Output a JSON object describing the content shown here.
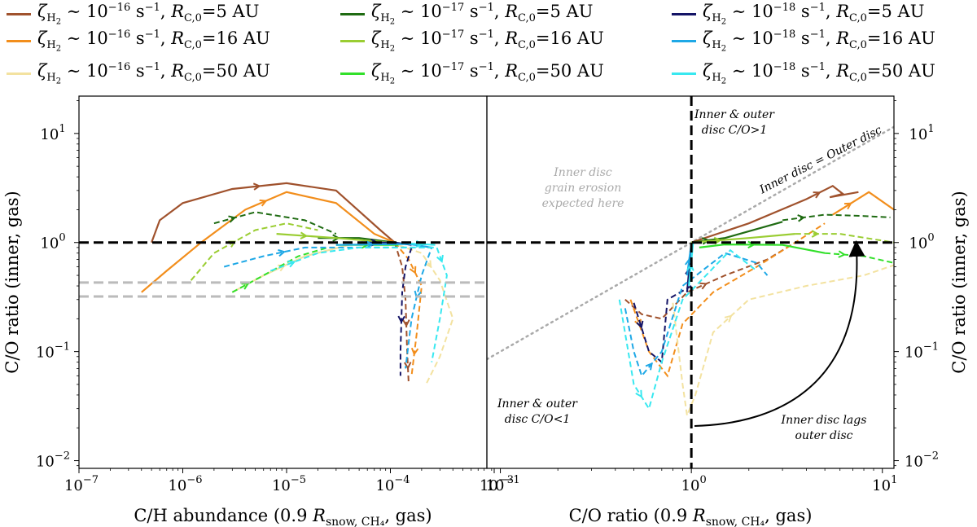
{
  "legend": [
    {
      "zeta": "10",
      "zeta_exp": "−16",
      "r_label": "=5 AU",
      "color": "#a0522d"
    },
    {
      "zeta": "10",
      "zeta_exp": "−16",
      "r_label": "=16 AU",
      "color": "#f28e1c"
    },
    {
      "zeta": "10",
      "zeta_exp": "−16",
      "r_label": "=50 AU",
      "color": "#f3e2a0"
    },
    {
      "zeta": "10",
      "zeta_exp": "−17",
      "r_label": "=5 AU",
      "color": "#1f6b12"
    },
    {
      "zeta": "10",
      "zeta_exp": "−17",
      "r_label": "=16 AU",
      "color": "#9acd32"
    },
    {
      "zeta": "10",
      "zeta_exp": "−17",
      "r_label": "=50 AU",
      "color": "#32e02a"
    },
    {
      "zeta": "10",
      "zeta_exp": "−18",
      "r_label": "=5 AU",
      "color": "#141466"
    },
    {
      "zeta": "10",
      "zeta_exp": "−18",
      "r_label": "=16 AU",
      "color": "#1ea8e6"
    },
    {
      "zeta": "10",
      "zeta_exp": "−18",
      "r_label": "=50 AU",
      "color": "#38e8f0"
    }
  ],
  "chart_data": [
    {
      "type": "line",
      "panel": "left",
      "xlabel": "C/H abundance (0.9 R_snow,CH4, gas)",
      "ylabel": "C/O ratio (inner, gas)",
      "xscale": "log",
      "yscale": "log",
      "xlim": [
        1e-07,
        0.00085
      ],
      "ylim": [
        0.0085,
        22
      ],
      "xticks": [
        {
          "base": "10",
          "exp": "−7",
          "v": 1e-07
        },
        {
          "base": "10",
          "exp": "−6",
          "v": 1e-06
        },
        {
          "base": "10",
          "exp": "−5",
          "v": 1e-05
        },
        {
          "base": "10",
          "exp": "−4",
          "v": 0.0001
        },
        {
          "base": "10",
          "exp": "−3",
          "v": 0.001
        }
      ],
      "yticks": [
        {
          "label": "10",
          "exp": "−2",
          "v": 0.01
        },
        {
          "label": "10",
          "exp": "−1",
          "v": 0.1
        },
        {
          "label": "10",
          "exp": "0",
          "v": 1
        },
        {
          "label": "10",
          "exp": "1",
          "v": 10
        }
      ],
      "hlines": [
        {
          "y": 1.0,
          "style": "black-dashed"
        },
        {
          "y": 0.43,
          "style": "grey-dashed"
        },
        {
          "y": 0.32,
          "style": "grey-dashed"
        }
      ],
      "series": [
        {
          "name": "ζ~1e-16, R=5 AU",
          "color": "#a0522d",
          "solid": [
            [
              5e-07,
              1.0
            ],
            [
              6e-07,
              1.6
            ],
            [
              1e-06,
              2.3
            ],
            [
              3e-06,
              3.1
            ],
            [
              1e-05,
              3.5
            ],
            [
              3e-05,
              3.0
            ],
            [
              8e-05,
              1.3
            ],
            [
              0.00011,
              1.0
            ]
          ],
          "dashed": [
            [
              0.00011,
              1.0
            ],
            [
              0.00013,
              0.6
            ],
            [
              0.00014,
              0.3
            ],
            [
              0.000145,
              0.1
            ],
            [
              0.00015,
              0.05
            ]
          ],
          "arrows": [
            3,
            5
          ]
        },
        {
          "name": "ζ~1e-16, R=16 AU",
          "color": "#f28e1c",
          "solid": [
            [
              4e-07,
              0.35
            ],
            [
              7e-07,
              0.55
            ],
            [
              1.5e-06,
              1.0
            ],
            [
              4e-06,
              2.0
            ],
            [
              1e-05,
              2.9
            ],
            [
              3e-05,
              2.3
            ],
            [
              7e-05,
              1.2
            ],
            [
              0.00011,
              1.0
            ]
          ],
          "dashed": [
            [
              0.00011,
              1.0
            ],
            [
              0.00015,
              0.7
            ],
            [
              0.0002,
              0.4
            ],
            [
              0.00018,
              0.15
            ],
            [
              0.00016,
              0.06
            ]
          ],
          "arrows": [
            2,
            4
          ]
        },
        {
          "name": "ζ~1e-16, R=50 AU",
          "color": "#f3e2a0",
          "solid": [
            [
              3e-06,
              0.35
            ],
            [
              6e-06,
              0.5
            ],
            [
              1.5e-05,
              0.75
            ],
            [
              4e-05,
              0.95
            ],
            [
              0.0001,
              1.0
            ]
          ],
          "dashed": [
            [
              0.0001,
              1.0
            ],
            [
              0.0002,
              0.8
            ],
            [
              0.0003,
              0.45
            ],
            [
              0.0004,
              0.2
            ],
            [
              0.0003,
              0.09
            ],
            [
              0.00022,
              0.05
            ]
          ],
          "arrows": [
            2
          ]
        },
        {
          "name": "ζ~1e-17, R=5 AU",
          "color": "#1f6b12",
          "solid": [
            [
              2e-05,
              1.1
            ],
            [
              5e-05,
              1.1
            ],
            [
              0.00011,
              1.0
            ]
          ],
          "dashed": [
            [
              2e-06,
              1.5
            ],
            [
              5e-06,
              1.9
            ],
            [
              1.5e-05,
              1.6
            ],
            [
              3e-05,
              1.2
            ]
          ],
          "arrows": [
            1
          ]
        },
        {
          "name": "ζ~1e-17, R=16 AU",
          "color": "#9acd32",
          "solid": [
            [
              8e-06,
              1.2
            ],
            [
              3e-05,
              1.1
            ],
            [
              0.0001,
              1.0
            ]
          ],
          "dashed": [
            [
              1.2e-06,
              0.45
            ],
            [
              2e-06,
              0.8
            ],
            [
              5e-06,
              1.3
            ],
            [
              1e-05,
              1.5
            ],
            [
              2e-05,
              1.3
            ]
          ],
          "arrows": [
            2
          ]
        },
        {
          "name": "ζ~1e-17, R=50 AU",
          "color": "#32e02a",
          "solid": [
            [
              3e-05,
              0.95
            ],
            [
              0.00012,
              0.95
            ]
          ],
          "dashed": [
            [
              3e-06,
              0.35
            ],
            [
              6e-06,
              0.5
            ],
            [
              1.3e-05,
              0.75
            ],
            [
              2.5e-05,
              0.9
            ]
          ],
          "arrows": [
            1
          ]
        },
        {
          "name": "ζ~1e-18, R=5 AU",
          "color": "#141466",
          "solid": [
            [
              5e-05,
              1.0
            ],
            [
              0.00011,
              1.0
            ],
            [
              0.00016,
              0.95
            ]
          ],
          "dashed": [
            [
              0.00016,
              0.9
            ],
            [
              0.00014,
              0.6
            ],
            [
              0.00013,
              0.35
            ],
            [
              0.000125,
              0.1
            ],
            [
              0.000125,
              0.06
            ]
          ],
          "arrows": [
            3
          ]
        },
        {
          "name": "ζ~1e-18, R=16 AU",
          "color": "#1ea8e6",
          "solid": [
            [
              3e-05,
              0.95
            ],
            [
              0.00015,
              0.97
            ],
            [
              0.00025,
              0.9
            ]
          ],
          "dashed": [
            [
              2.5e-06,
              0.6
            ],
            [
              6e-06,
              0.75
            ],
            [
              1.5e-05,
              0.9
            ],
            [
              0.00025,
              0.9
            ],
            [
              0.0002,
              0.5
            ],
            [
              0.00016,
              0.2
            ],
            [
              0.00014,
              0.07
            ]
          ],
          "arrows": [
            2,
            5
          ]
        },
        {
          "name": "ζ~1e-18, R=50 AU",
          "color": "#38e8f0",
          "solid": [
            [
              0.00015,
              0.98
            ],
            [
              0.00027,
              0.95
            ]
          ],
          "dashed": [
            [
              7e-06,
              0.55
            ],
            [
              2e-05,
              0.8
            ],
            [
              5e-05,
              0.9
            ],
            [
              0.00028,
              0.9
            ],
            [
              0.00035,
              0.5
            ],
            [
              0.0003,
              0.2
            ],
            [
              0.00025,
              0.08
            ]
          ],
          "arrows": [
            1,
            4
          ]
        }
      ]
    },
    {
      "type": "line",
      "panel": "right",
      "xlabel": "C/O ratio (0.9 R_snow,CH4, gas)",
      "ylabel": "C/O ratio (inner, gas)",
      "xscale": "log",
      "yscale": "log",
      "xlim": [
        0.085,
        11.5
      ],
      "ylim": [
        0.0085,
        22
      ],
      "xticks": [
        {
          "base": "10",
          "exp": "−1",
          "v": 0.1
        },
        {
          "base": "10",
          "exp": "0",
          "v": 1
        },
        {
          "base": "10",
          "exp": "1",
          "v": 10
        }
      ],
      "yticks": [
        {
          "label": "10",
          "exp": "−2",
          "v": 0.01
        },
        {
          "label": "10",
          "exp": "−1",
          "v": 0.1
        },
        {
          "label": "10",
          "exp": "0",
          "v": 1
        },
        {
          "label": "10",
          "exp": "1",
          "v": 10
        }
      ],
      "hlines": [
        {
          "y": 1.0,
          "style": "black-dashed"
        }
      ],
      "vlines": [
        {
          "x": 1.0,
          "style": "black-dashed"
        }
      ],
      "diagonal": {
        "label": "Inner disc = Outer disc"
      },
      "annotations": [
        {
          "id": "top",
          "lines": [
            "Inner & outer",
            "disc C/O>1"
          ]
        },
        {
          "id": "erosion",
          "lines": [
            "Inner disc",
            "grain erosion",
            "expected here"
          ]
        },
        {
          "id": "bottom",
          "lines": [
            "Inner & outer",
            "disc C/O<1"
          ]
        },
        {
          "id": "lag",
          "lines": [
            "Inner disc lags",
            "outer disc"
          ]
        }
      ],
      "series": [
        {
          "name": "ζ~1e-16, R=5 AU",
          "color": "#a0522d",
          "solid": [
            [
              1.0,
              1.0
            ],
            [
              2.0,
              1.5
            ],
            [
              4.0,
              2.5
            ],
            [
              5.5,
              3.3
            ],
            [
              6.2,
              2.8
            ],
            [
              5.3,
              2.6
            ],
            [
              7.5,
              2.9
            ]
          ],
          "dashed": [
            [
              0.45,
              0.3
            ],
            [
              0.55,
              0.22
            ],
            [
              0.7,
              0.2
            ],
            [
              0.95,
              0.35
            ],
            [
              1.5,
              0.5
            ],
            [
              2.5,
              0.7
            ],
            [
              3.5,
              1.0
            ]
          ],
          "arrows": [
            4
          ]
        },
        {
          "name": "ζ~1e-16, R=16 AU",
          "color": "#f28e1c",
          "solid": [
            [
              5.5,
              1.8
            ],
            [
              8.5,
              2.9
            ],
            [
              11.5,
              2.0
            ]
          ],
          "dashed": [
            [
              0.48,
              0.3
            ],
            [
              0.6,
              0.1
            ],
            [
              0.75,
              0.06
            ],
            [
              0.9,
              0.18
            ],
            [
              1.3,
              0.35
            ],
            [
              2.2,
              0.6
            ],
            [
              3.5,
              1.0
            ],
            [
              5.0,
              1.5
            ]
          ],
          "arrows": [
            1
          ]
        },
        {
          "name": "ζ~1e-16, R=50 AU",
          "color": "#f3e2a0",
          "solid": [],
          "dashed": [
            [
              0.8,
              0.28
            ],
            [
              0.9,
              0.05
            ],
            [
              0.95,
              0.026
            ],
            [
              1.05,
              0.04
            ],
            [
              1.3,
              0.15
            ],
            [
              2.0,
              0.3
            ],
            [
              4.0,
              0.4
            ],
            [
              8.0,
              0.5
            ],
            [
              11.5,
              0.62
            ]
          ],
          "arrows": [
            5
          ]
        },
        {
          "name": "ζ~1e-17, R=5 AU",
          "color": "#1f6b12",
          "solid": [
            [
              1.0,
              1.0
            ],
            [
              1.5,
              1.1
            ],
            [
              3.0,
              1.55
            ]
          ],
          "dashed": [
            [
              3.0,
              1.6
            ],
            [
              5.0,
              1.8
            ],
            [
              8.0,
              1.75
            ],
            [
              11.0,
              1.7
            ]
          ],
          "arrows": [
            1
          ]
        },
        {
          "name": "ζ~1e-17, R=16 AU",
          "color": "#9acd32",
          "solid": [
            [
              1.0,
              1.0
            ],
            [
              2.0,
              1.1
            ],
            [
              3.5,
              1.2
            ]
          ],
          "dashed": [
            [
              3.5,
              1.2
            ],
            [
              6.0,
              1.2
            ],
            [
              11.5,
              1.0
            ]
          ],
          "arrows": [
            1
          ]
        },
        {
          "name": "ζ~1e-17, R=50 AU",
          "color": "#32e02a",
          "solid": [
            [
              1.1,
              0.9
            ],
            [
              1.5,
              0.96
            ],
            [
              3.0,
              0.95
            ],
            [
              5.0,
              0.8
            ]
          ],
          "dashed": [
            [
              5.0,
              0.8
            ],
            [
              8.0,
              0.75
            ],
            [
              11.5,
              0.65
            ]
          ],
          "arrows": [
            1
          ]
        },
        {
          "name": "ζ~1e-18, R=5 AU",
          "color": "#141466",
          "solid": [
            [
              0.95,
              0.35
            ],
            [
              1.0,
              0.95
            ]
          ],
          "dashed": [
            [
              0.5,
              0.28
            ],
            [
              0.6,
              0.1
            ],
            [
              0.7,
              0.08
            ],
            [
              0.75,
              0.3
            ],
            [
              1.0,
              0.4
            ]
          ],
          "arrows": [
            1
          ]
        },
        {
          "name": "ζ~1e-18, R=16 AU",
          "color": "#1ea8e6",
          "solid": [
            [
              0.95,
              0.5
            ],
            [
              1.0,
              0.98
            ]
          ],
          "dashed": [
            [
              0.45,
              0.25
            ],
            [
              0.5,
              0.1
            ],
            [
              0.55,
              0.06
            ],
            [
              0.7,
              0.1
            ],
            [
              0.9,
              0.4
            ],
            [
              1.5,
              0.8
            ],
            [
              2.2,
              0.65
            ],
            [
              2.5,
              0.5
            ]
          ],
          "arrows": [
            3
          ]
        },
        {
          "name": "ζ~1e-18, R=50 AU",
          "color": "#38e8f0",
          "solid": [
            [
              0.97,
              0.4
            ],
            [
              1.02,
              0.98
            ]
          ],
          "dashed": [
            [
              0.42,
              0.3
            ],
            [
              0.5,
              0.05
            ],
            [
              0.6,
              0.03
            ],
            [
              0.7,
              0.08
            ],
            [
              0.9,
              0.3
            ],
            [
              1.6,
              0.85
            ],
            [
              2.2,
              0.55
            ]
          ],
          "arrows": [
            2
          ]
        }
      ]
    }
  ]
}
